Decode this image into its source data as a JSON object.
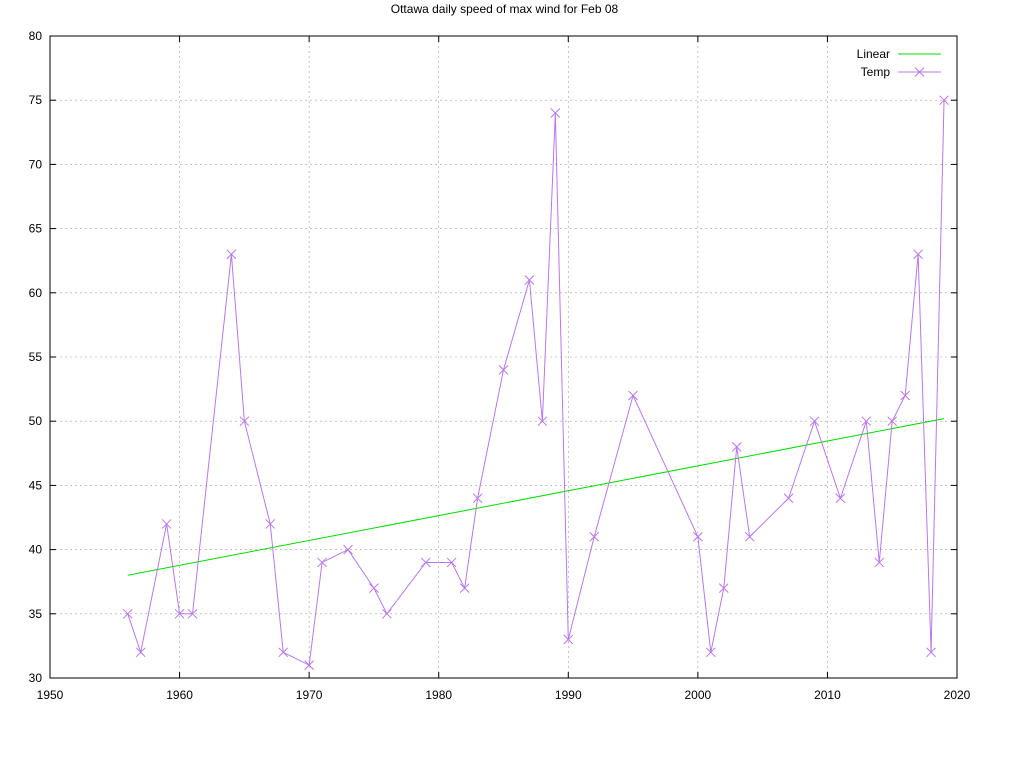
{
  "chart_data": {
    "type": "line",
    "title": "Ottawa daily speed of max wind for Feb 08",
    "xlabel": "",
    "ylabel": "",
    "xlim": [
      1950,
      2020
    ],
    "ylim": [
      30,
      80
    ],
    "x_ticks": [
      1950,
      1960,
      1970,
      1980,
      1990,
      2000,
      2010,
      2020
    ],
    "y_ticks": [
      30,
      35,
      40,
      45,
      50,
      55,
      60,
      65,
      70,
      75,
      80
    ],
    "grid": true,
    "legend_position": "top-right",
    "series": [
      {
        "name": "Linear",
        "kind": "line",
        "color": "#00dd00",
        "x": [
          1956,
          2019
        ],
        "y": [
          38.0,
          50.2
        ]
      },
      {
        "name": "Temp",
        "kind": "line-markers",
        "marker": "x",
        "color": "#bb77ee",
        "x": [
          1956,
          1957,
          1959,
          1960,
          1961,
          1964,
          1965,
          1967,
          1968,
          1970,
          1971,
          1973,
          1975,
          1976,
          1979,
          1981,
          1982,
          1983,
          1985,
          1987,
          1988,
          1989,
          1990,
          1992,
          1995,
          2000,
          2001,
          2002,
          2003,
          2004,
          2007,
          2009,
          2011,
          2013,
          2014,
          2015,
          2016,
          2017,
          2018,
          2019
        ],
        "y": [
          35,
          32,
          42,
          35,
          35,
          63,
          50,
          42,
          32,
          31,
          39,
          40,
          37,
          35,
          39,
          39,
          37,
          44,
          54,
          61,
          50,
          74,
          33,
          41,
          52,
          41,
          32,
          37,
          48,
          41,
          44,
          50,
          44,
          50,
          39,
          50,
          52,
          63,
          32,
          75
        ]
      }
    ]
  }
}
